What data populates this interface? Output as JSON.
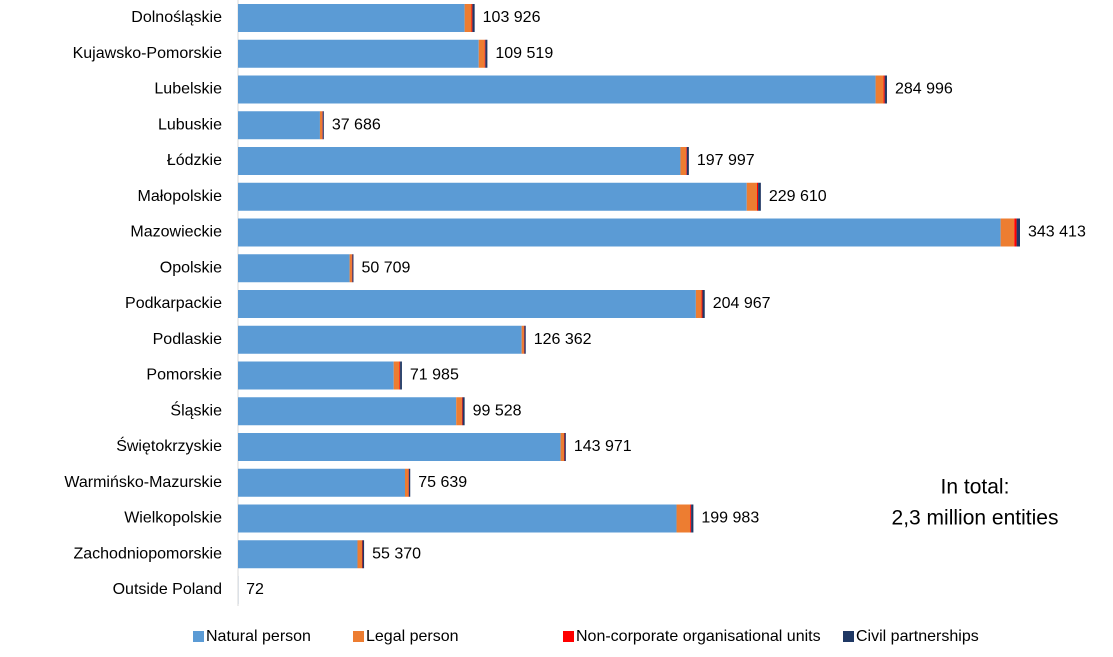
{
  "chart_data": {
    "type": "stacked-barh",
    "categories": [
      "Dolnośląskie",
      "Kujawsko-Pomorskie",
      "Lubelskie",
      "Lubuskie",
      "Łódzkie",
      "Małopolskie",
      "Mazowieckie",
      "Opolskie",
      "Podkarpackie",
      "Podlaskie",
      "Pomorskie",
      "Śląskie",
      "Świętokrzyskie",
      "Warmińsko-Mazurskie",
      "Wielkopolskie",
      "Zachodniopomorskie",
      "Outside Poland"
    ],
    "series": [
      {
        "name": "Natural person",
        "color": "#5b9bd5",
        "values": [
          99526,
          105719,
          279996,
          35986,
          194297,
          223410,
          334913,
          49009,
          201067,
          124562,
          68385,
          95828,
          141671,
          73339,
          192583,
          52470,
          60
        ]
      },
      {
        "name": "Legal person",
        "color": "#ed7d31",
        "values": [
          3000,
          2600,
          3500,
          1000,
          2500,
          4500,
          6000,
          1000,
          2500,
          1000,
          2500,
          2500,
          1500,
          1500,
          6000,
          2000,
          10
        ]
      },
      {
        "name": "Non-corporate organisational units",
        "color": "#ff0000",
        "values": [
          400,
          300,
          500,
          200,
          300,
          500,
          1000,
          200,
          400,
          200,
          300,
          300,
          200,
          200,
          400,
          200,
          0
        ]
      },
      {
        "name": "Civil partnerships",
        "color": "#1f3864",
        "values": [
          1000,
          900,
          1000,
          500,
          900,
          1200,
          1500,
          500,
          1000,
          600,
          800,
          900,
          600,
          600,
          1000,
          700,
          2
        ]
      }
    ],
    "totals": [
      103926,
      109519,
      284996,
      37686,
      197997,
      229610,
      343413,
      50709,
      204967,
      126362,
      71985,
      99528,
      143971,
      75639,
      199983,
      55370,
      72
    ],
    "total_labels": [
      "103 926",
      "109 519",
      "284 996",
      "37 686",
      "197 997",
      "229 610",
      "343 413",
      "50 709",
      "204 967",
      "126 362",
      "71 985",
      "99 528",
      "143 971",
      "75 639",
      "199 983",
      "55 370",
      "72"
    ],
    "annotation": [
      "In total:",
      "2,3 million entities"
    ],
    "legend": "bottom"
  }
}
